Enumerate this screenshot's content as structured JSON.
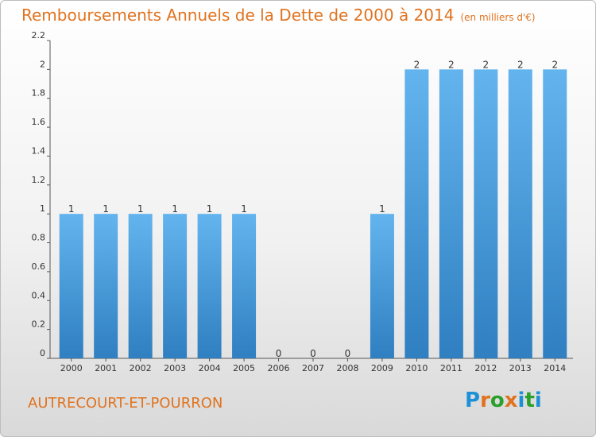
{
  "header": {
    "title": "Remboursements Annuels de la Dette de 2000 à 2014",
    "subtitle": "(en milliers d'€)"
  },
  "footer": {
    "commune": "AUTRECOURT-ET-POURRON",
    "logo_text": "Proxiti",
    "logo_colors": [
      "#1e90d6",
      "#e0731f",
      "#2ca02c",
      "#e0731f",
      "#1e90d6",
      "#2ca02c",
      "#1e90d6"
    ]
  },
  "colors": {
    "bar_light": "#63b4ee",
    "bar_dark": "#2f7fc1",
    "title": "#e0731f"
  },
  "chart_data": {
    "type": "bar",
    "title": "Remboursements Annuels de la Dette de 2000 à 2014",
    "subtitle": "(en milliers d'€)",
    "categories": [
      "2000",
      "2001",
      "2002",
      "2003",
      "2004",
      "2005",
      "2006",
      "2007",
      "2008",
      "2009",
      "2010",
      "2011",
      "2012",
      "2013",
      "2014"
    ],
    "values": [
      1,
      1,
      1,
      1,
      1,
      1,
      0,
      0,
      0,
      1,
      2,
      2,
      2,
      2,
      2
    ],
    "data_labels": [
      "1",
      "1",
      "1",
      "1",
      "1",
      "1",
      "0",
      "0",
      "0",
      "1",
      "2",
      "2",
      "2",
      "2",
      "2"
    ],
    "ylim": [
      0,
      2.2
    ],
    "yticks": [
      0,
      0.2,
      0.4,
      0.6,
      0.8,
      1,
      1.2,
      1.4,
      1.6,
      1.8,
      2,
      2.2
    ],
    "ytick_labels": [
      "0",
      "0.2",
      "0.4",
      "0.6",
      "0.8",
      "1",
      "1.2",
      "1.4",
      "1.6",
      "1.8",
      "2",
      "2.2"
    ],
    "grid": false,
    "legend": "none"
  }
}
